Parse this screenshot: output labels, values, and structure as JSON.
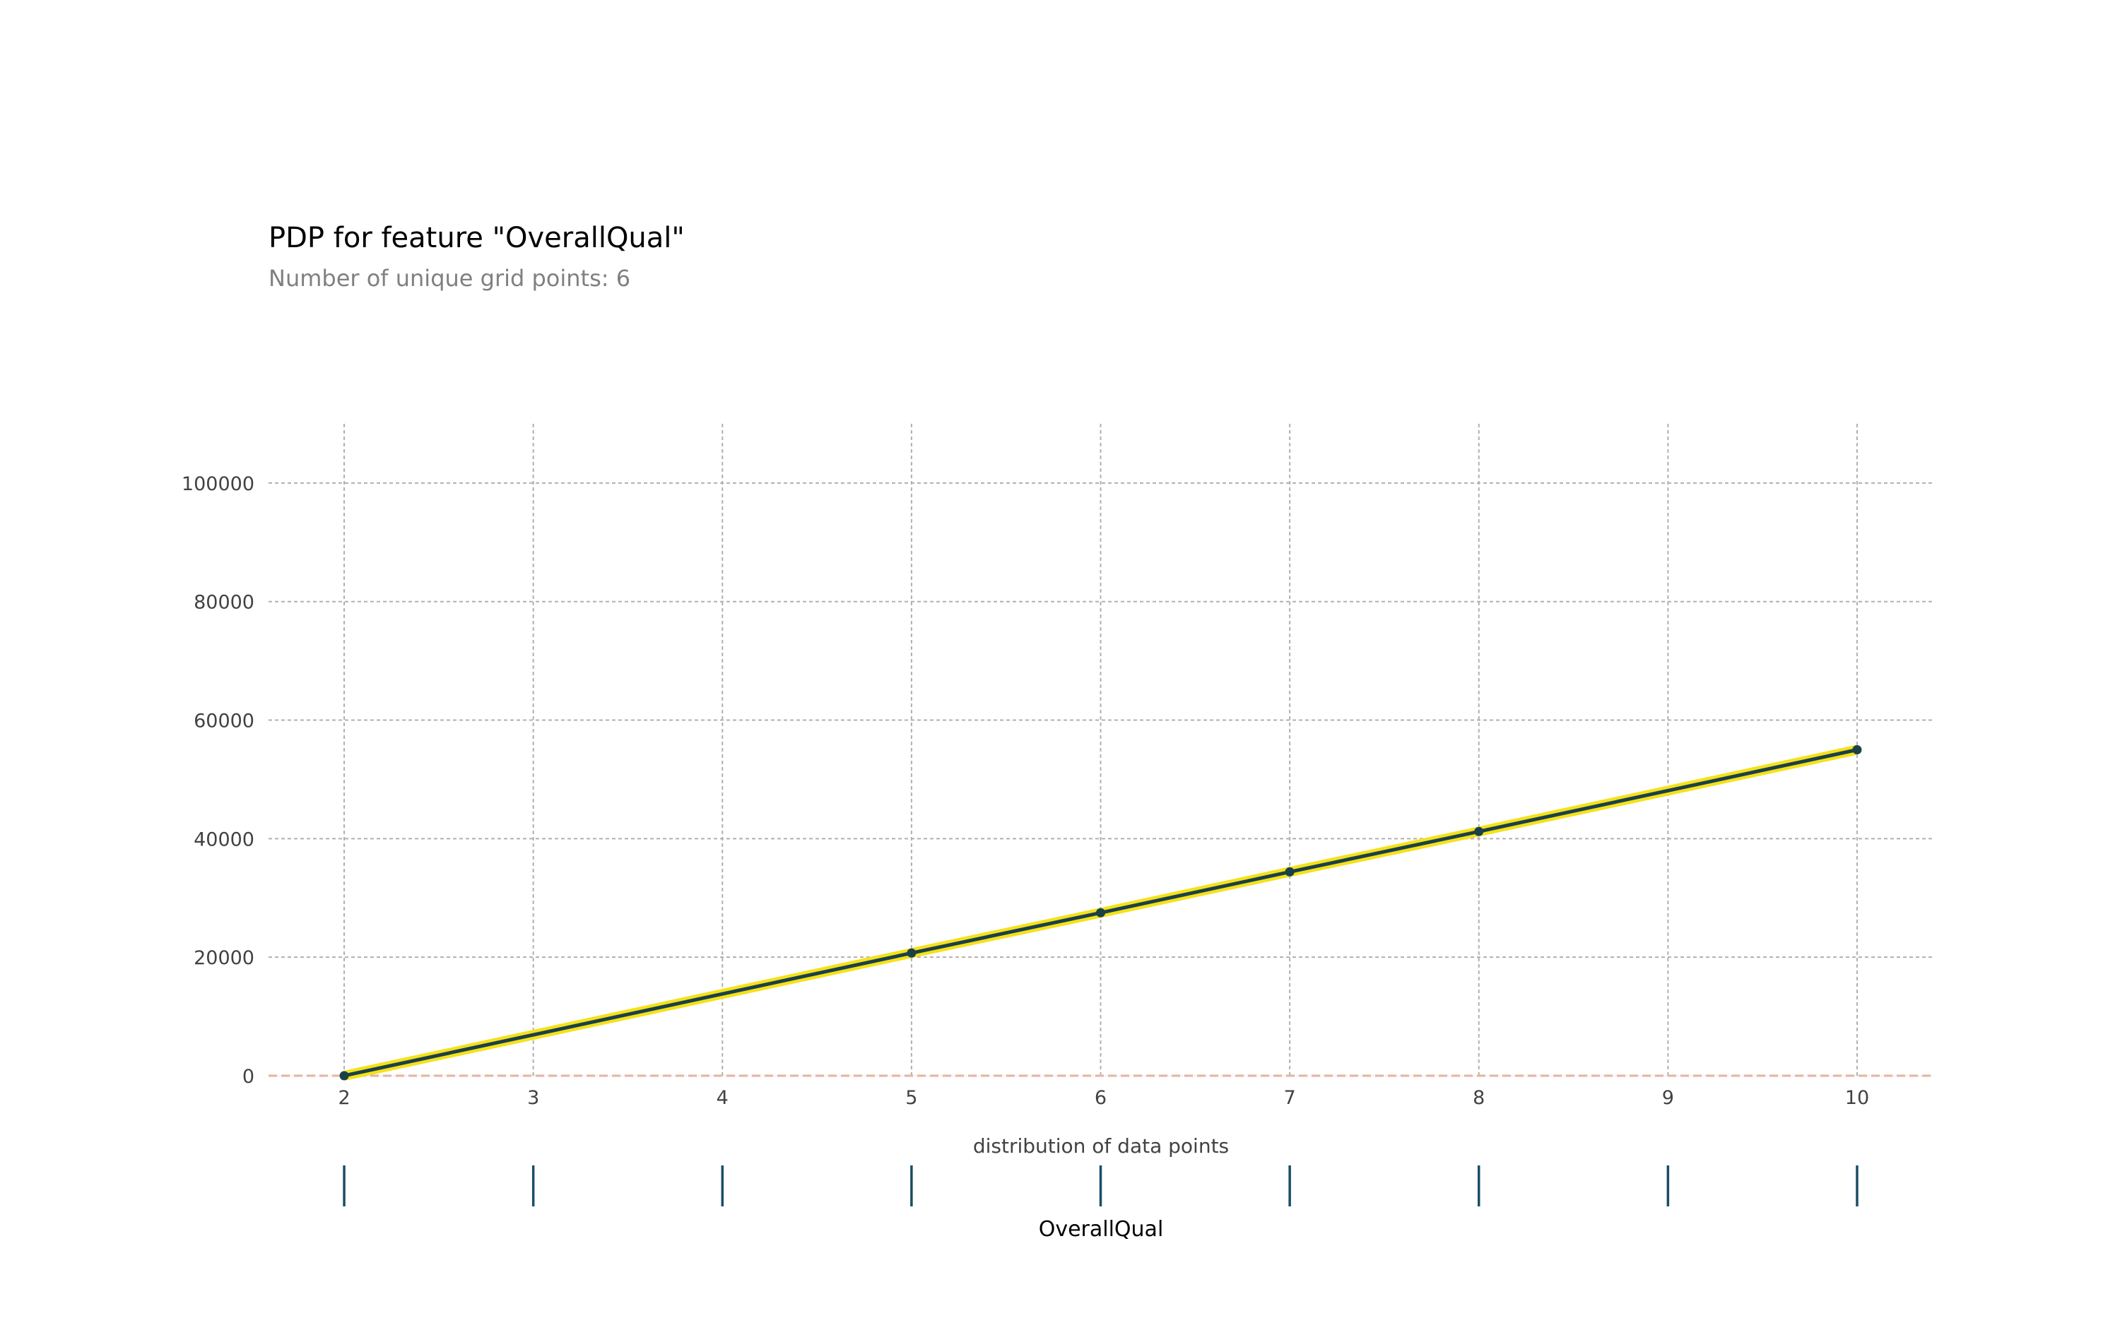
{
  "chart_data": {
    "type": "line",
    "title": "PDP for feature \"OverallQual\"",
    "subtitle": "Number of unique grid points: 6",
    "xlabel": "OverallQual",
    "ylabel": "",
    "distribution_label": "distribution of data points",
    "xlim": [
      1.6,
      10.4
    ],
    "ylim": [
      0,
      110000
    ],
    "x_ticks": [
      2,
      3,
      4,
      5,
      6,
      7,
      8,
      9,
      10
    ],
    "y_ticks": [
      0,
      20000,
      40000,
      60000,
      80000,
      100000
    ],
    "grid": true,
    "series": [
      {
        "x": [
          2,
          5,
          6,
          7,
          8,
          10
        ],
        "values": [
          0,
          20700,
          27500,
          34400,
          41200,
          55000
        ]
      }
    ],
    "confidence_band_color": "#f5e11b",
    "line_color": "#1a4148",
    "marker_color": "#1a4148",
    "baseline_value": 0,
    "baseline_color": "#e8b4a0",
    "distribution_points": [
      2,
      3,
      4,
      5,
      6,
      7,
      8,
      9,
      10
    ],
    "distribution_color": "#1a4d66"
  }
}
